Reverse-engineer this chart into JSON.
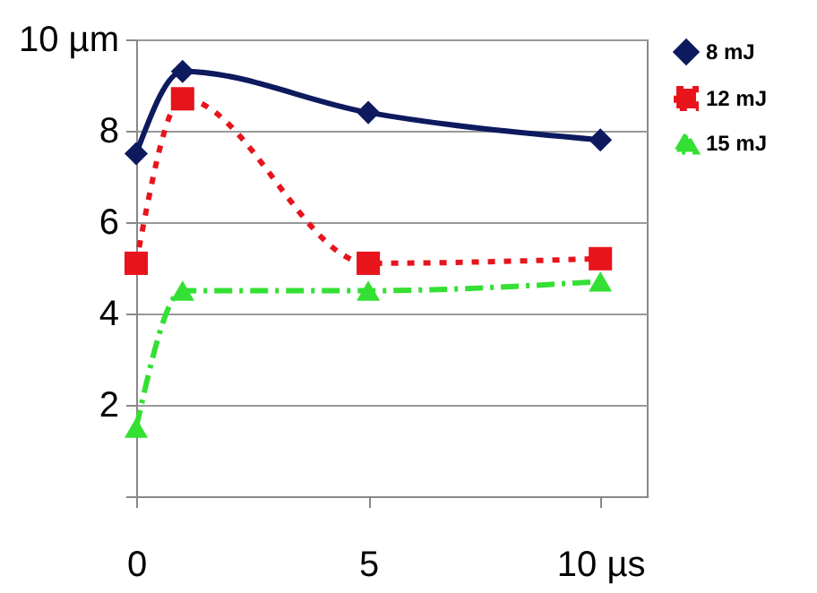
{
  "chart_data": {
    "type": "line",
    "x": [
      0,
      1,
      5,
      10
    ],
    "series": [
      {
        "name": "8 mJ",
        "color": "#0d1a5e",
        "values": [
          7.5,
          9.3,
          8.4,
          7.8
        ],
        "marker": "diamond",
        "line_style": "solid"
      },
      {
        "name": "12 mJ",
        "color": "#e8141c",
        "values": [
          5.1,
          8.7,
          5.1,
          5.2
        ],
        "marker": "square",
        "line_style": "dotted"
      },
      {
        "name": "15 mJ",
        "color": "#33e033",
        "values": [
          1.5,
          4.5,
          4.5,
          4.7
        ],
        "marker": "triangle",
        "line_style": "dashed"
      }
    ],
    "xlim": [
      0,
      11
    ],
    "xticks": [
      0,
      5,
      {
        "value": 10,
        "label": "10 µs"
      }
    ],
    "ylim": [
      0,
      10
    ],
    "yticks": [
      {
        "value": 0,
        "label": null
      },
      2,
      4,
      6,
      8,
      {
        "value": 10,
        "label": "10 µm"
      }
    ],
    "grid": "y",
    "legend": "right"
  }
}
